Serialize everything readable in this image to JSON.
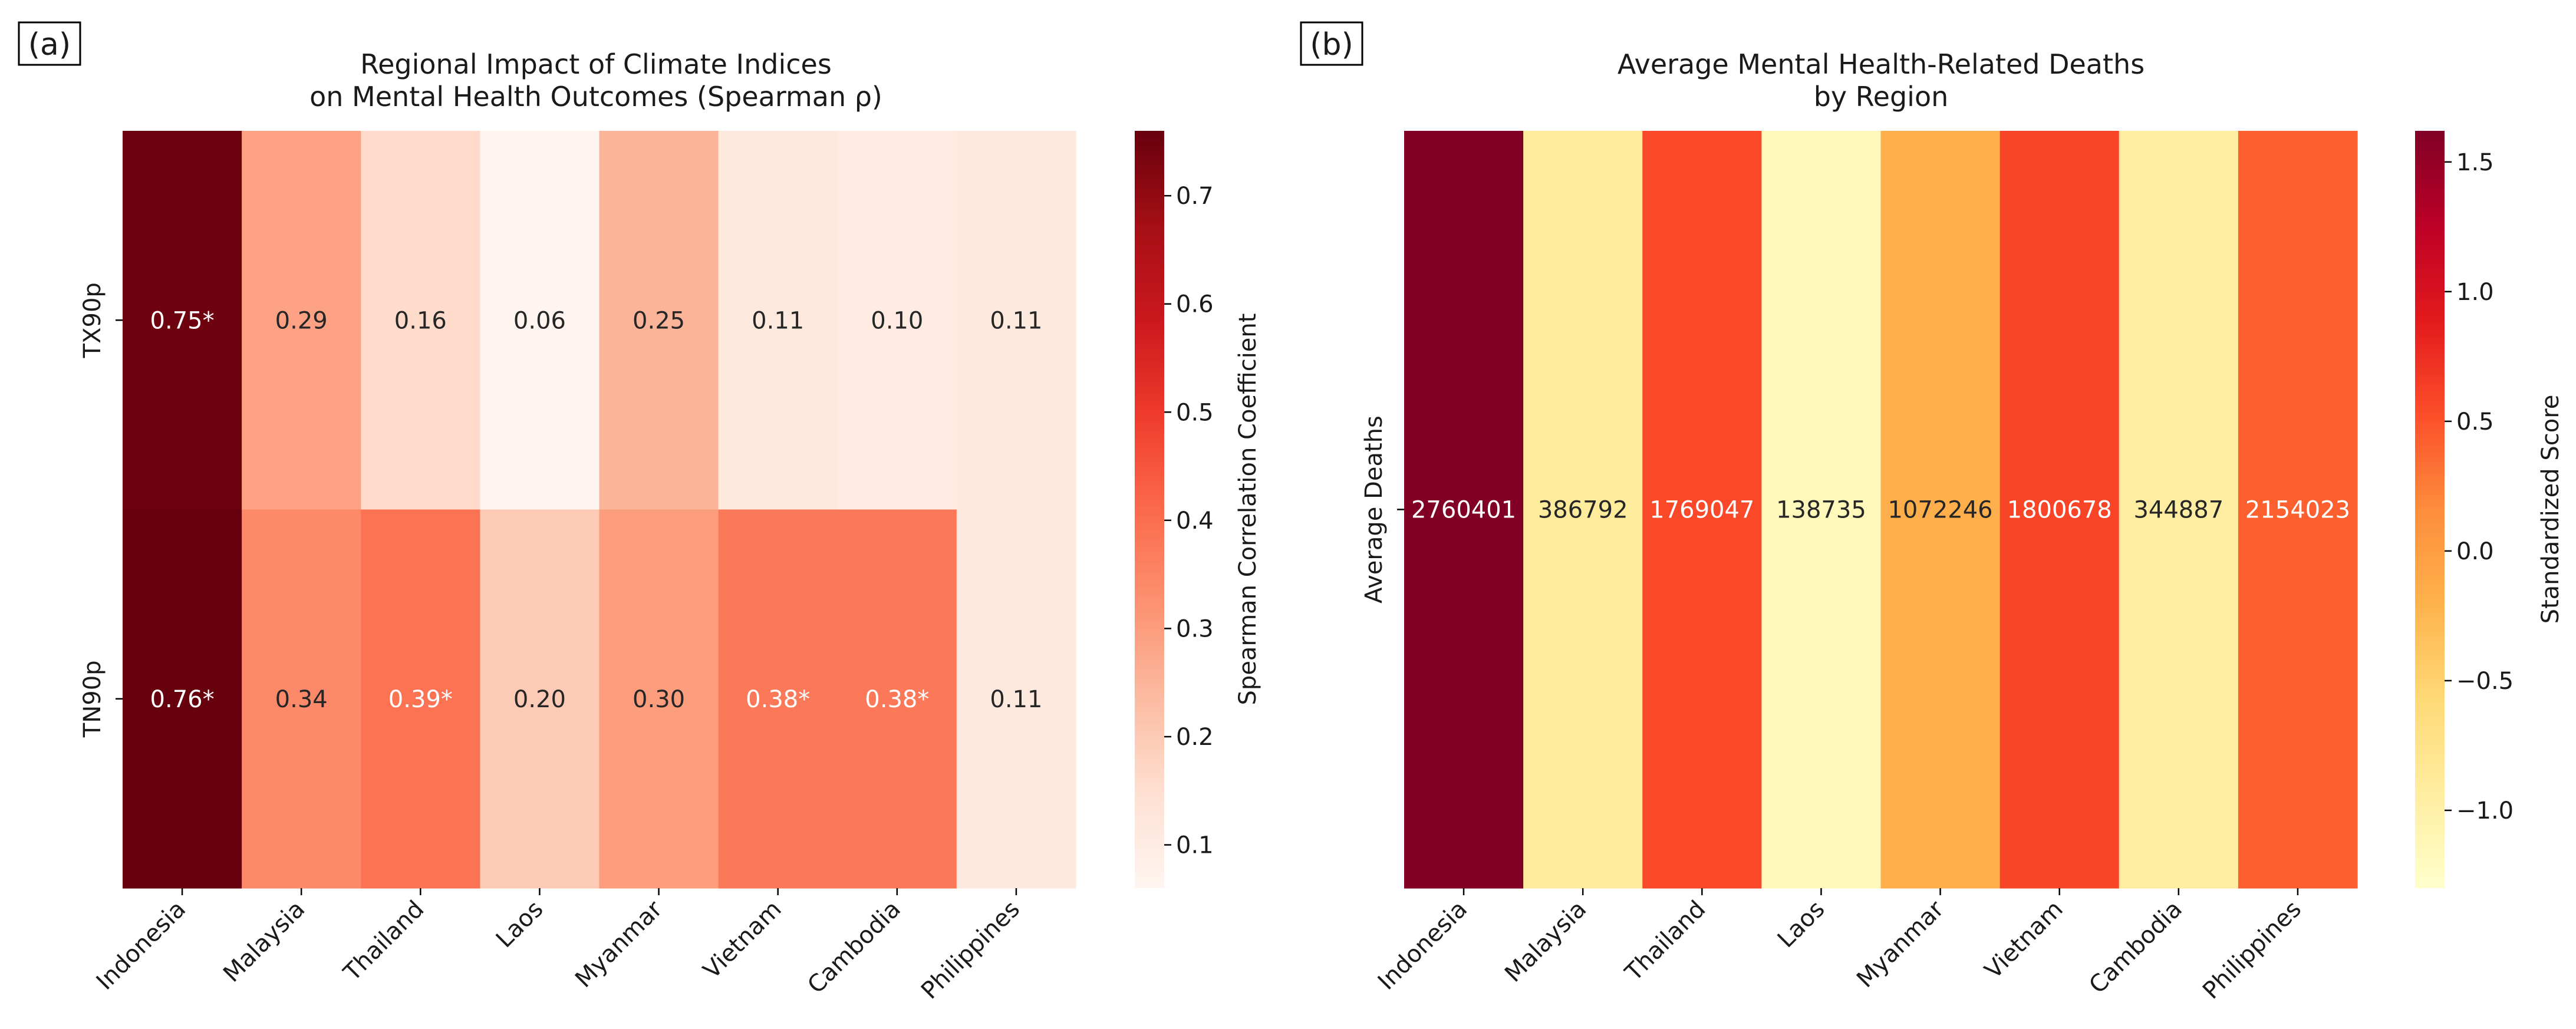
{
  "chart_data": [
    {
      "type": "heatmap",
      "panel_label": "(a)",
      "title": "Regional Impact of Climate Indices",
      "title_line2": "on Mental Health Outcomes (Spearman ρ)",
      "x_categories": [
        "Indonesia",
        "Malaysia",
        "Thailand",
        "Laos",
        "Myanmar",
        "Vietnam",
        "Cambodia",
        "Philippines"
      ],
      "y_categories": [
        "TX90p",
        "TN90p"
      ],
      "values": [
        [
          0.75,
          0.29,
          0.16,
          0.06,
          0.25,
          0.11,
          0.1,
          0.11
        ],
        [
          0.76,
          0.34,
          0.39,
          0.2,
          0.3,
          0.38,
          0.38,
          0.11
        ]
      ],
      "annotations": [
        [
          "0.75*",
          "0.29",
          "0.16",
          "0.06",
          "0.25",
          "0.11",
          "0.10",
          "0.11"
        ],
        [
          "0.76*",
          "0.34",
          "0.39*",
          "0.20",
          "0.30",
          "0.38*",
          "0.38*",
          "0.11"
        ]
      ],
      "colormap": "Reds",
      "vmin": 0.06,
      "vmax": 0.76,
      "colorbar_label": "Spearman Correlation Coefficient",
      "colorbar_ticks": [
        "0.1",
        "0.2",
        "0.3",
        "0.4",
        "0.5",
        "0.6",
        "0.7"
      ],
      "colorbar_tick_values": [
        0.1,
        0.2,
        0.3,
        0.4,
        0.5,
        0.6,
        0.7
      ]
    },
    {
      "type": "heatmap",
      "panel_label": "(b)",
      "title": "Average Mental Health-Related Deaths",
      "title_line2": "by Region",
      "x_categories": [
        "Indonesia",
        "Malaysia",
        "Thailand",
        "Laos",
        "Myanmar",
        "Vietnam",
        "Cambodia",
        "Philippines"
      ],
      "y_categories": [
        "Average Deaths"
      ],
      "values": [
        [
          2760401,
          386792,
          1769047,
          138735,
          1072246,
          1800678,
          344887,
          2154023
        ]
      ],
      "annotations": [
        [
          "2760401",
          "386792",
          "1769047",
          "138735",
          "1072246",
          "1800678",
          "344887",
          "2154023"
        ]
      ],
      "standardized_scores": [
        1.61,
        -0.9,
        0.56,
        -1.16,
        -0.18,
        0.59,
        -0.94,
        0.42
      ],
      "colormap": "YlOrRd",
      "vmin": -1.3,
      "vmax": 1.62,
      "colorbar_label": "Standardized Score",
      "colorbar_ticks": [
        "1.5",
        "1.0",
        "0.5",
        "0.0",
        "−0.5",
        "−1.0"
      ],
      "colorbar_tick_values": [
        1.5,
        1.0,
        0.5,
        0.0,
        -0.5,
        -1.0
      ]
    }
  ]
}
